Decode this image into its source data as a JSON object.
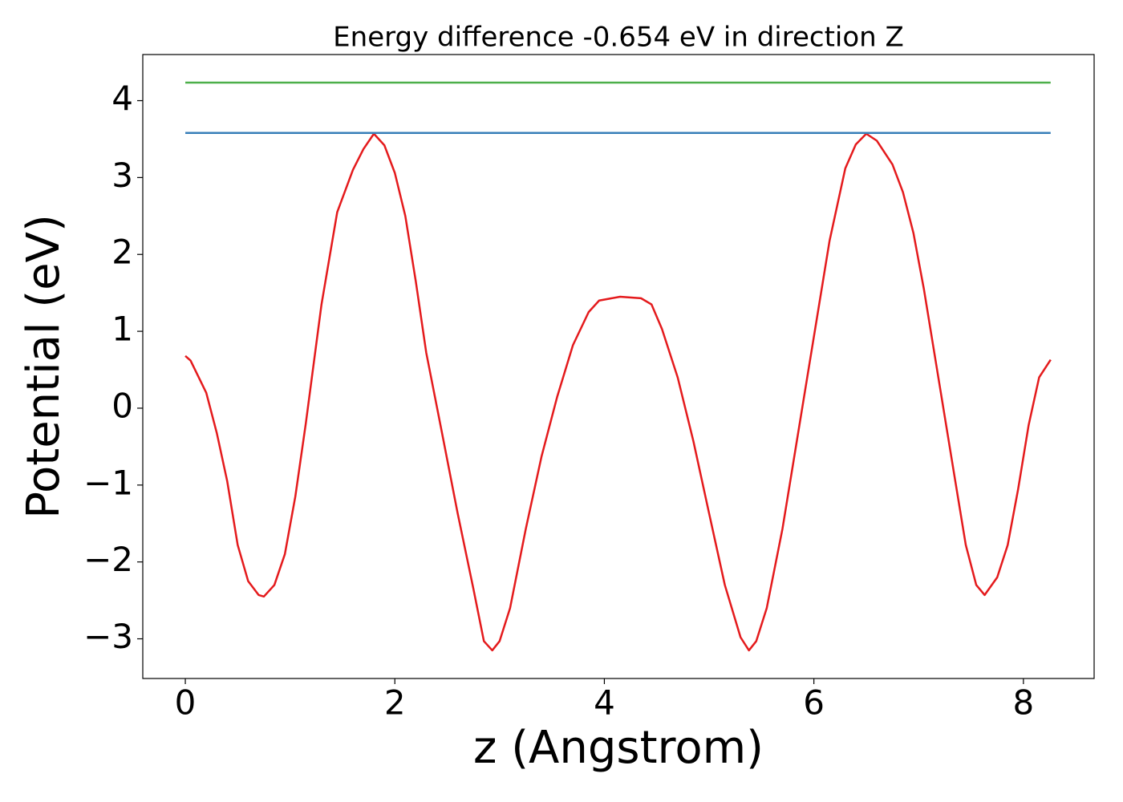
{
  "chart_data": {
    "type": "line",
    "title": "Energy difference -0.654 eV in direction Z",
    "xlabel": "z (Angstrom)",
    "ylabel": "Potential (eV)",
    "xlim": [
      -0.406,
      8.675
    ],
    "ylim": [
      -3.516,
      4.6
    ],
    "xticks": [
      0,
      2,
      4,
      6,
      8
    ],
    "yticks": [
      {
        "value": -3,
        "label": "−3"
      },
      {
        "value": -2,
        "label": "−2"
      },
      {
        "value": -1,
        "label": "−1"
      },
      0,
      1,
      2,
      3,
      4
    ],
    "series": [
      {
        "color": "#e41a1c",
        "x": [
          0,
          0.05,
          0.2,
          0.3,
          0.4,
          0.5,
          0.6,
          0.7,
          0.75,
          0.85,
          0.95,
          1.05,
          1.15,
          1.3,
          1.45,
          1.6,
          1.7,
          1.8,
          1.9,
          2.0,
          2.1,
          2.2,
          2.3,
          2.45,
          2.6,
          2.75,
          2.85,
          2.93,
          3.0,
          3.1,
          3.25,
          3.4,
          3.55,
          3.7,
          3.85,
          3.95,
          4.15,
          4.35,
          4.45,
          4.55,
          4.7,
          4.85,
          5.0,
          5.15,
          5.3,
          5.38,
          5.45,
          5.55,
          5.7,
          5.85,
          6.0,
          6.15,
          6.3,
          6.4,
          6.5,
          6.6,
          6.75,
          6.85,
          6.95,
          7.05,
          7.2,
          7.35,
          7.45,
          7.55,
          7.63,
          7.75,
          7.85,
          7.95,
          8.05,
          8.15,
          8.26
        ],
        "values": [
          0.68,
          0.62,
          0.2,
          -0.32,
          -0.95,
          -1.78,
          -2.25,
          -2.43,
          -2.45,
          -2.3,
          -1.9,
          -1.15,
          -0.2,
          1.35,
          2.55,
          3.1,
          3.37,
          3.57,
          3.42,
          3.06,
          2.5,
          1.65,
          0.72,
          -0.32,
          -1.37,
          -2.35,
          -3.03,
          -3.15,
          -3.03,
          -2.6,
          -1.57,
          -0.63,
          0.15,
          0.82,
          1.25,
          1.4,
          1.45,
          1.43,
          1.35,
          1.03,
          0.4,
          -0.43,
          -1.37,
          -2.3,
          -2.98,
          -3.15,
          -3.03,
          -2.6,
          -1.57,
          -0.32,
          0.93,
          2.18,
          3.12,
          3.43,
          3.57,
          3.48,
          3.17,
          2.81,
          2.28,
          1.55,
          0.3,
          -0.95,
          -1.78,
          -2.3,
          -2.43,
          -2.2,
          -1.78,
          -1.05,
          -0.22,
          0.4,
          0.63
        ]
      },
      {
        "color": "#377eb8",
        "x": [
          0,
          8.26
        ],
        "values": [
          3.58,
          3.58
        ]
      },
      {
        "color": "#4daf4a",
        "x": [
          0,
          8.26
        ],
        "values": [
          4.235,
          4.235
        ]
      }
    ]
  }
}
